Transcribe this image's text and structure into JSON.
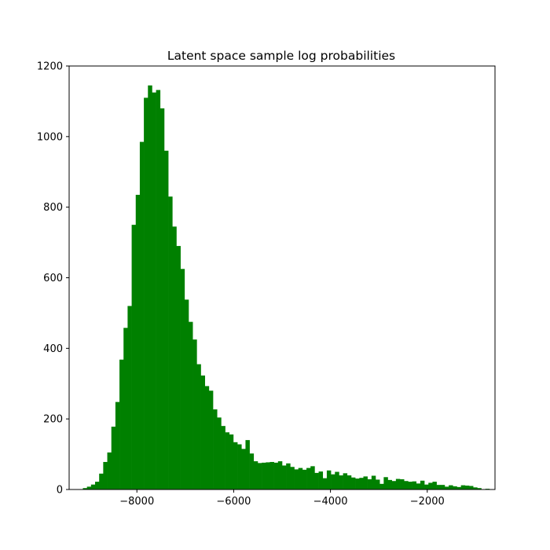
{
  "chart_data": {
    "type": "bar",
    "title": "Latent space sample log probabilities",
    "xlabel": "",
    "ylabel": "",
    "xlim": [
      -9400,
      -600
    ],
    "ylim": [
      0,
      1200
    ],
    "xticks": [
      -8000,
      -6000,
      -4000,
      -2000
    ],
    "xtick_labels": [
      "−8000",
      "−6000",
      "−4000",
      "−2000"
    ],
    "yticks": [
      0,
      200,
      400,
      600,
      800,
      1000,
      1200
    ],
    "ytick_labels": [
      "0",
      "200",
      "400",
      "600",
      "800",
      "1000",
      "1200"
    ],
    "grid": false,
    "bar_color": "#008000",
    "bin_start": -9200,
    "bin_width": 84,
    "values": [
      1,
      4,
      8,
      14,
      22,
      45,
      78,
      105,
      178,
      248,
      368,
      458,
      520,
      750,
      835,
      985,
      1110,
      1145,
      1125,
      1132,
      1080,
      960,
      830,
      745,
      690,
      625,
      538,
      475,
      425,
      355,
      323,
      293,
      280,
      227,
      204,
      180,
      162,
      156,
      134,
      128,
      115,
      140,
      102,
      80,
      75,
      76,
      77,
      78,
      76,
      80,
      68,
      74,
      64,
      57,
      61,
      56,
      61,
      66,
      47,
      51,
      32,
      54,
      43,
      50,
      40,
      46,
      40,
      34,
      31,
      33,
      37,
      29,
      39,
      28,
      16,
      35,
      27,
      24,
      30,
      29,
      24,
      22,
      23,
      17,
      25,
      14,
      19,
      22,
      13,
      13,
      8,
      12,
      9,
      7,
      12,
      11,
      10,
      6,
      4,
      0,
      2
    ]
  }
}
